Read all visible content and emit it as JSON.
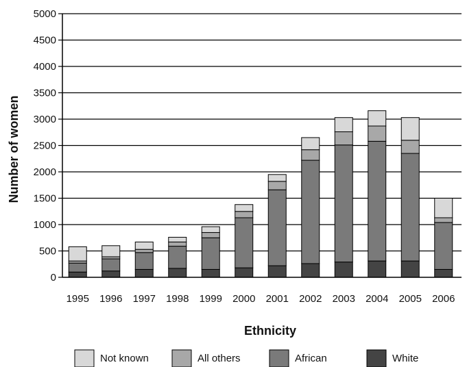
{
  "chart_data": {
    "type": "bar",
    "stacked": true,
    "categories": [
      "1995",
      "1996",
      "1997",
      "1998",
      "1999",
      "2000",
      "2001",
      "2002",
      "2003",
      "2004",
      "2005",
      "2006"
    ],
    "series": [
      {
        "name": "White",
        "color": "#444444",
        "values": [
          100,
          120,
          150,
          170,
          150,
          180,
          220,
          260,
          290,
          310,
          310,
          150
        ]
      },
      {
        "name": "African",
        "color": "#7a7a7a",
        "values": [
          170,
          230,
          320,
          420,
          600,
          950,
          1440,
          1960,
          2220,
          2270,
          2040,
          890
        ]
      },
      {
        "name": "All others",
        "color": "#a8a8a8",
        "values": [
          40,
          40,
          60,
          80,
          100,
          120,
          160,
          200,
          250,
          290,
          250,
          90
        ]
      },
      {
        "name": "Not known",
        "color": "#d8d8d8",
        "values": [
          270,
          210,
          140,
          90,
          110,
          130,
          130,
          230,
          270,
          290,
          430,
          370
        ]
      }
    ],
    "legend_order": [
      "Not known",
      "All others",
      "African",
      "White"
    ],
    "xlabel": "Ethnicity",
    "ylabel": "Number of women",
    "ylim": [
      0,
      5000
    ],
    "yticks": [
      0,
      500,
      1000,
      1500,
      2000,
      2500,
      3000,
      3500,
      4000,
      4500,
      5000
    ],
    "grid": true,
    "legend_position": "bottom"
  }
}
